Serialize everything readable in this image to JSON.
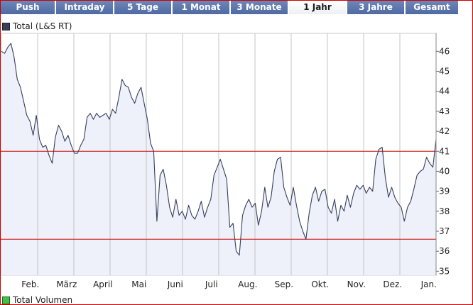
{
  "tabs": [
    {
      "label": "Push",
      "active": false
    },
    {
      "label": "Intraday",
      "active": false
    },
    {
      "label": "5 Tage",
      "active": false
    },
    {
      "label": "1 Monat",
      "active": false
    },
    {
      "label": "3 Monate",
      "active": false
    },
    {
      "label": "1 Jahr",
      "active": true
    },
    {
      "label": "3 Jahre",
      "active": false
    },
    {
      "label": "Gesamt",
      "active": false
    }
  ],
  "legend_price": "Total (L&S RT)",
  "legend_volume": "Total Volumen",
  "chart_data": {
    "type": "line",
    "ylim": [
      34.8,
      46.9
    ],
    "yticks": [
      35,
      36,
      37,
      38,
      39,
      40,
      41,
      42,
      43,
      44,
      45,
      46
    ],
    "x_labels": [
      "Feb.",
      "März",
      "April",
      "Mai",
      "Juni",
      "Juli",
      "Aug.",
      "Sep.",
      "Okt.",
      "Nov.",
      "Dez.",
      "Jan."
    ],
    "reference_lines": [
      41.0,
      36.6
    ],
    "colors": {
      "line": "#34405e",
      "fill": "#eef0fa",
      "reference": "#cc0000",
      "grid": "#c4c4c4"
    },
    "series": [
      {
        "values": [
          46.0,
          45.9,
          46.2,
          46.4,
          45.7,
          44.6,
          44.2,
          43.5,
          42.8,
          42.5,
          41.8,
          42.8,
          41.6,
          41.2,
          41.3,
          40.8,
          40.4,
          41.7,
          42.3,
          42.0,
          41.5,
          41.8,
          41.3,
          40.9,
          40.9,
          41.3,
          41.6,
          42.7,
          42.9,
          42.6,
          42.9,
          42.7,
          42.8,
          42.9,
          42.6,
          43.1,
          42.9,
          43.7,
          44.6,
          44.3,
          44.2,
          43.7,
          43.4,
          43.9,
          44.2,
          43.4,
          42.6,
          41.4,
          41.0,
          37.5,
          39.8,
          40.1,
          39.3,
          38.2,
          37.7,
          38.6,
          37.8,
          38.0,
          37.6,
          38.3,
          37.8,
          37.6,
          38.0,
          38.5,
          37.7,
          38.2,
          38.6,
          39.8,
          40.2,
          40.6,
          40.1,
          39.6,
          37.2,
          37.4,
          36.0,
          35.8,
          37.8,
          38.3,
          38.6,
          38.2,
          38.4,
          37.3,
          38.0,
          39.2,
          38.2,
          38.7,
          40.0,
          40.6,
          40.7,
          39.2,
          38.7,
          38.3,
          39.2,
          38.3,
          37.5,
          37.0,
          36.6,
          37.9,
          38.8,
          39.2,
          38.5,
          39.0,
          39.1,
          38.2,
          37.9,
          38.6,
          37.5,
          38.3,
          38.0,
          38.8,
          38.2,
          38.9,
          39.3,
          39.1,
          39.3,
          38.9,
          39.2,
          39.0,
          40.6,
          41.1,
          41.2,
          39.7,
          38.7,
          39.2,
          38.7,
          38.4,
          38.2,
          37.5,
          38.2,
          38.5,
          39.1,
          39.8,
          40.0,
          40.1,
          40.7,
          40.4,
          40.2,
          41.6
        ]
      }
    ]
  }
}
